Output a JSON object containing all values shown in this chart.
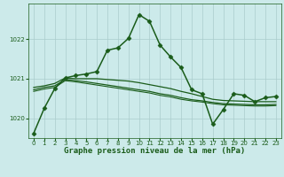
{
  "title": "Graphe pression niveau de la mer (hPa)",
  "bg_color": "#cceaea",
  "plot_bg_color": "#cceaea",
  "grid_color": "#aacccc",
  "line_color": "#1a5c1a",
  "xlim": [
    -0.5,
    23.5
  ],
  "ylim": [
    1019.5,
    1022.9
  ],
  "yticks": [
    1020,
    1021,
    1022
  ],
  "xticks": [
    0,
    1,
    2,
    3,
    4,
    5,
    6,
    7,
    8,
    9,
    10,
    11,
    12,
    13,
    14,
    15,
    16,
    17,
    18,
    19,
    20,
    21,
    22,
    23
  ],
  "xlabel_fontsize": 6.5,
  "tick_fontsize": 5,
  "series": [
    {
      "x": [
        0,
        1,
        2,
        3,
        4,
        5,
        6,
        7,
        8,
        9,
        10,
        11,
        12,
        13,
        14,
        15,
        16,
        17,
        18,
        19,
        20,
        21,
        22,
        23
      ],
      "y": [
        1019.62,
        1020.25,
        1020.75,
        1021.02,
        1021.08,
        1021.12,
        1021.18,
        1021.72,
        1021.78,
        1022.02,
        1022.62,
        1022.45,
        1021.85,
        1021.55,
        1021.28,
        1020.72,
        1020.62,
        1019.85,
        1020.22,
        1020.62,
        1020.58,
        1020.42,
        1020.52,
        1020.55
      ],
      "marker": "D",
      "markersize": 2.5,
      "linewidth": 1.1
    },
    {
      "x": [
        0,
        1,
        2,
        3,
        4,
        5,
        6,
        7,
        8,
        9,
        10,
        11,
        12,
        13,
        14,
        15,
        16,
        17,
        18,
        19,
        20,
        21,
        22,
        23
      ],
      "y": [
        1020.78,
        1020.82,
        1020.88,
        1021.02,
        1021.0,
        1021.0,
        1021.0,
        1020.98,
        1020.96,
        1020.94,
        1020.9,
        1020.85,
        1020.8,
        1020.75,
        1020.68,
        1020.62,
        1020.55,
        1020.48,
        1020.45,
        1020.44,
        1020.43,
        1020.42,
        1020.42,
        1020.42
      ],
      "marker": null,
      "linewidth": 0.9
    },
    {
      "x": [
        0,
        1,
        2,
        3,
        4,
        5,
        6,
        7,
        8,
        9,
        10,
        11,
        12,
        13,
        14,
        15,
        16,
        17,
        18,
        19,
        20,
        21,
        22,
        23
      ],
      "y": [
        1020.72,
        1020.78,
        1020.82,
        1020.98,
        1020.95,
        1020.92,
        1020.88,
        1020.84,
        1020.8,
        1020.76,
        1020.72,
        1020.68,
        1020.62,
        1020.58,
        1020.52,
        1020.47,
        1020.44,
        1020.4,
        1020.37,
        1020.36,
        1020.35,
        1020.34,
        1020.34,
        1020.35
      ],
      "marker": null,
      "linewidth": 0.9
    },
    {
      "x": [
        0,
        1,
        2,
        3,
        4,
        5,
        6,
        7,
        8,
        9,
        10,
        11,
        12,
        13,
        14,
        15,
        16,
        17,
        18,
        19,
        20,
        21,
        22,
        23
      ],
      "y": [
        1020.68,
        1020.74,
        1020.78,
        1020.95,
        1020.92,
        1020.88,
        1020.84,
        1020.8,
        1020.76,
        1020.72,
        1020.68,
        1020.64,
        1020.58,
        1020.54,
        1020.48,
        1020.44,
        1020.41,
        1020.37,
        1020.34,
        1020.33,
        1020.32,
        1020.31,
        1020.31,
        1020.32
      ],
      "marker": null,
      "linewidth": 0.8
    }
  ]
}
